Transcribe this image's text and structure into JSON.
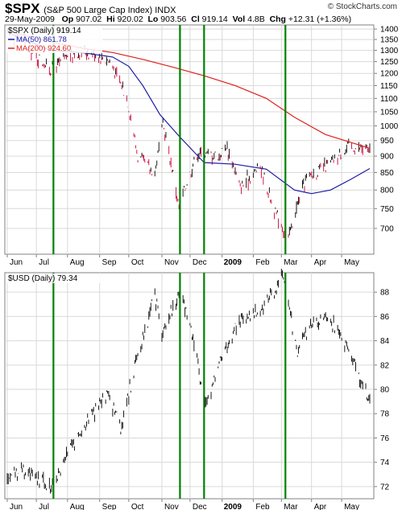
{
  "header": {
    "symbol": "$SPX",
    "name": "(S&P 500 Large Cap Index) INDX",
    "copyright": "© StockCharts.com",
    "date": "29-May-2009",
    "op_label": "Op",
    "op": "907.02",
    "hi_label": "Hi",
    "hi": "920.02",
    "lo_label": "Lo",
    "lo": "903.56",
    "cl_label": "Cl",
    "cl": "919.14",
    "vol_label": "Vol",
    "vol": "4.8B",
    "chg_label": "Chg",
    "chg": "+12.31 (+1.36%)"
  },
  "colors": {
    "price": "#000000",
    "down_bar": "#cc0033",
    "ma50": "#1a1aa6",
    "ma200": "#e0201b",
    "vline": "#008000",
    "grid": "#d9d9d9"
  },
  "chart_data": [
    {
      "type": "line",
      "title": "$SPX (Daily) 919.14",
      "legend": [
        {
          "label": "MA(50) 861.78",
          "color": "#1a1aa6"
        },
        {
          "label": "MA(200) 924.60",
          "color": "#e0201b"
        }
      ],
      "legend_position": "top-left",
      "yscale": "log",
      "ylim": [
        640,
        1420
      ],
      "ytick_labels": [
        "700",
        "750",
        "800",
        "850",
        "900",
        "950",
        "1000",
        "1050",
        "1100",
        "1150",
        "1200",
        "1250",
        "1300",
        "1350",
        "1400"
      ],
      "xtick_labels": [
        "Jun",
        "Jul",
        "Aug",
        "Sep",
        "Oct",
        "Nov",
        "Dec",
        "2009",
        "Feb",
        "Mar",
        "Apr",
        "May"
      ],
      "x_date_range": [
        "2008-06-02",
        "2009-05-29"
      ],
      "grid": true,
      "series": [
        {
          "name": "$SPX",
          "dates": [
            "2008-06-02",
            "2008-06-16",
            "2008-06-30",
            "2008-07-15",
            "2008-07-31",
            "2008-08-15",
            "2008-08-29",
            "2008-09-12",
            "2008-09-29",
            "2008-10-10",
            "2008-10-27",
            "2008-11-04",
            "2008-11-20",
            "2008-12-08",
            "2008-12-31",
            "2009-01-06",
            "2009-01-20",
            "2009-02-09",
            "2009-02-23",
            "2009-03-09",
            "2009-03-26",
            "2009-04-17",
            "2009-05-08",
            "2009-05-29"
          ],
          "values": [
            1380,
            1360,
            1280,
            1215,
            1267,
            1298,
            1283,
            1252,
            1106,
            899,
            848,
            1005,
            752,
            909,
            903,
            935,
            805,
            870,
            743,
            677,
            832,
            870,
            929,
            919
          ]
        },
        {
          "name": "MA(50)",
          "dates": [
            "2008-06-02",
            "2008-07-15",
            "2008-08-15",
            "2008-09-15",
            "2008-10-01",
            "2008-10-15",
            "2008-11-01",
            "2008-11-20",
            "2008-12-15",
            "2009-01-15",
            "2009-02-15",
            "2009-03-15",
            "2009-04-01",
            "2009-04-20",
            "2009-05-10",
            "2009-05-29"
          ],
          "values": [
            1385,
            1300,
            1290,
            1270,
            1230,
            1150,
            1040,
            965,
            880,
            875,
            860,
            800,
            790,
            800,
            830,
            862
          ]
        },
        {
          "name": "MA(200)",
          "dates": [
            "2008-06-02",
            "2008-07-15",
            "2008-08-15",
            "2008-09-15",
            "2008-10-15",
            "2008-11-15",
            "2008-12-15",
            "2009-01-15",
            "2009-02-15",
            "2009-03-15",
            "2009-04-15",
            "2009-05-29"
          ],
          "values": [
            1390,
            1340,
            1310,
            1290,
            1260,
            1225,
            1190,
            1150,
            1100,
            1030,
            970,
            925
          ]
        }
      ],
      "vlines": [
        "2008-07-18",
        "2008-11-21",
        "2008-12-15",
        "2009-03-06"
      ]
    },
    {
      "type": "line",
      "title": "$USD (Daily) 79.34",
      "legend_position": "top-left",
      "ylim": [
        71,
        89.6
      ],
      "ytick_labels": [
        "72",
        "74",
        "76",
        "78",
        "80",
        "82",
        "84",
        "86",
        "88"
      ],
      "xtick_labels": [
        "Jun",
        "Jul",
        "Aug",
        "Sep",
        "Oct",
        "Nov",
        "Dec",
        "2009",
        "Feb",
        "Mar",
        "Apr",
        "May"
      ],
      "grid": true,
      "series": [
        {
          "name": "$USD",
          "dates": [
            "2008-06-02",
            "2008-06-20",
            "2008-07-01",
            "2008-07-15",
            "2008-07-25",
            "2008-08-08",
            "2008-08-20",
            "2008-09-10",
            "2008-09-24",
            "2008-10-10",
            "2008-10-27",
            "2008-11-03",
            "2008-11-21",
            "2008-12-01",
            "2008-12-17",
            "2009-01-02",
            "2009-01-20",
            "2009-02-13",
            "2009-03-04",
            "2009-03-18",
            "2009-03-31",
            "2009-04-17",
            "2009-05-08",
            "2009-05-22",
            "2009-05-29"
          ],
          "values": [
            72.9,
            73.5,
            72.6,
            71.9,
            73.3,
            75.8,
            77.3,
            79.5,
            76.8,
            83.0,
            87.6,
            84.5,
            88.1,
            85.5,
            78.5,
            82.8,
            85.7,
            86.8,
            89.2,
            83.0,
            85.4,
            86.0,
            83.5,
            80.2,
            79.34
          ]
        }
      ],
      "vlines": [
        "2008-07-18",
        "2008-11-21",
        "2008-12-15",
        "2009-03-06"
      ]
    }
  ]
}
